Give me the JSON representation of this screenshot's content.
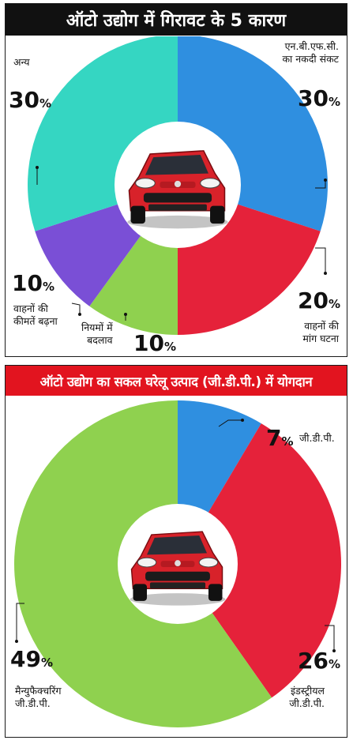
{
  "charts": [
    {
      "title": "ऑटो उद्योग में गिरावट के 5 कारण",
      "labels": [
        {
          "text": "एन.बी.एफ.सी.",
          "text2": "का नकदी संकट",
          "pct": "30",
          "suffix": "%"
        },
        {
          "text": "वाहनों की",
          "text2": "मांग घटना",
          "pct": "20",
          "suffix": "%"
        },
        {
          "text": "नियमों में",
          "text2": "बदलाव",
          "pct": "10",
          "suffix": "%"
        },
        {
          "text": "वाहनों की",
          "text2": "कीमतें बढ़ना",
          "pct": "10",
          "suffix": "%"
        },
        {
          "text": "अन्य",
          "text2": "",
          "pct": "30",
          "suffix": "%"
        }
      ]
    },
    {
      "title": "ऑटो उद्योग का सकल घरेलू उत्पाद (जी.डी.पी.) में योगदान",
      "labels": [
        {
          "text": "जी.डी.पी.",
          "text2": "",
          "pct": "7",
          "suffix": "%"
        },
        {
          "text": "इंडस्ट्रीयल",
          "text2": "जी.डी.पी.",
          "pct": "26",
          "suffix": "%"
        },
        {
          "text": "मैन्युफैक्चरिंग",
          "text2": "जी.डी.पी.",
          "pct": "49",
          "suffix": "%"
        }
      ]
    }
  ],
  "chart_data": [
    {
      "type": "pie",
      "title": "ऑटो उद्योग में गिरावट के 5 कारण",
      "categories": [
        "एन.बी.एफ.सी. का नकदी संकट",
        "वाहनों की मांग घटना",
        "नियमों में बदलाव",
        "वाहनों की कीमतें बढ़ना",
        "अन्य"
      ],
      "values": [
        30,
        20,
        10,
        10,
        30
      ],
      "colors": [
        "#2f8fe0",
        "#e5223a",
        "#8fd14f",
        "#7a4fd6",
        "#35d6c2"
      ]
    },
    {
      "type": "pie",
      "title": "ऑटो उद्योग का सकल घरेलू उत्पाद (जी.डी.पी.) में योगदान",
      "categories": [
        "जी.डी.पी.",
        "इंडस्ट्रीयल जी.डी.पी.",
        "मैन्युफैक्चरिंग जी.डी.पी."
      ],
      "values": [
        7,
        26,
        49
      ],
      "colors": [
        "#2f8fe0",
        "#e5223a",
        "#8fd14f"
      ]
    }
  ]
}
